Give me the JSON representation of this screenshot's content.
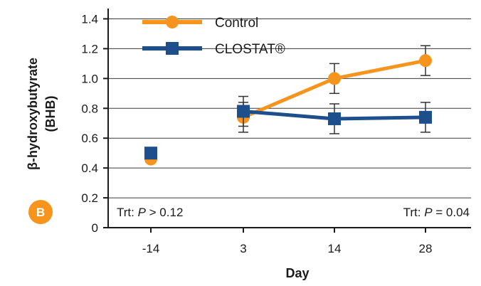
{
  "chart_data": {
    "type": "line",
    "title": "",
    "xlabel": "Day",
    "ylabel_line1": "β-hydroxybutyrate",
    "ylabel_line2": "(BHB)",
    "categories": [
      "-14",
      "3",
      "14",
      "28"
    ],
    "ylim": [
      0,
      1.45
    ],
    "yticks": [
      "0",
      "0.2",
      "0.4",
      "0.6",
      "0.8",
      "1.0",
      "1.2",
      "1.4"
    ],
    "ytick_values": [
      0,
      0.2,
      0.4,
      0.6,
      0.8,
      1.0,
      1.2,
      1.4
    ],
    "grid": true,
    "legend_position": "top-left",
    "series": [
      {
        "name": "Control",
        "color": "#f7941d",
        "marker": "circle",
        "values": [
          0.46,
          0.74,
          1.0,
          1.12
        ],
        "error": [
          0,
          0.1,
          0.1,
          0.1
        ],
        "connected_from_index": 1
      },
      {
        "name": "CLOSTAT®",
        "color": "#1c4f8c",
        "marker": "square",
        "values": [
          0.5,
          0.78,
          0.73,
          0.74
        ],
        "error": [
          0,
          0.1,
          0.1,
          0.1
        ],
        "connected_from_index": 1
      }
    ],
    "annotations": {
      "left_prefix": "Trt: ",
      "left_p": "P",
      "left_suffix": " > 0.12",
      "right_prefix": "Trt: ",
      "right_p": "P",
      "right_suffix": " = 0.04"
    },
    "panel_label": "B",
    "panel_color": "#f7941d"
  }
}
